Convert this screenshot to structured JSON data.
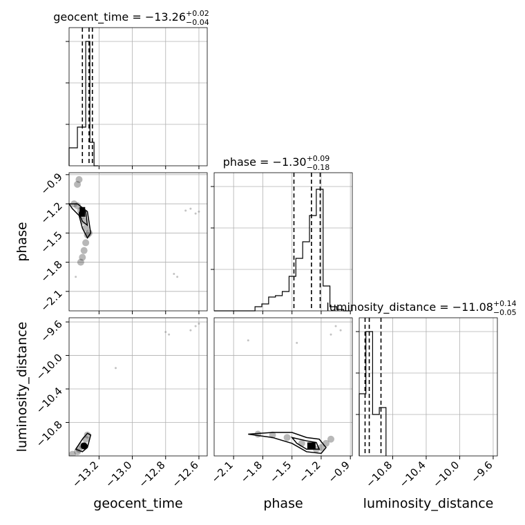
{
  "chart_data": {
    "type": "scatter",
    "kind": "corner-plot",
    "parameters": [
      "geocent_time",
      "phase",
      "luminosity_distance"
    ],
    "ranges": {
      "geocent_time": [
        -13.38,
        -12.55
      ],
      "phase": [
        -2.3,
        -0.88
      ],
      "luminosity_distance": [
        -11.2,
        -9.55
      ]
    },
    "ticks": {
      "geocent_time": [
        "−13.2",
        "−13.0",
        "−12.8",
        "−12.6"
      ],
      "phase": [
        "−2.1",
        "−1.8",
        "−1.5",
        "−1.2",
        "−0.9"
      ],
      "luminosity_distance": [
        "−10.8",
        "−10.4",
        "−10.0",
        "−9.6"
      ]
    },
    "tick_values": {
      "geocent_time": [
        -13.2,
        -13.0,
        -12.8,
        -12.6
      ],
      "phase": [
        -2.1,
        -1.8,
        -1.5,
        -1.2,
        -0.9
      ],
      "luminosity_distance": [
        -10.8,
        -10.4,
        -10.0,
        -9.6
      ]
    },
    "titles": {
      "geocent_time": {
        "prefix": "geocent_time = −13.26",
        "sup": "+0.02",
        "sub": "−0.04"
      },
      "phase": {
        "prefix": "phase = −1.30",
        "sup": "+0.09",
        "sub": "−0.18"
      },
      "luminosity_distance": {
        "prefix": "luminosity_distance = −11.08",
        "sup": "+0.14",
        "sub": "−0.05"
      }
    },
    "quantiles": {
      "geocent_time": [
        -13.3,
        -13.26,
        -13.24
      ],
      "phase": [
        -1.48,
        -1.3,
        -1.21
      ],
      "luminosity_distance": [
        -11.13,
        -11.08,
        -10.94
      ]
    },
    "histograms": {
      "geocent_time": {
        "edges": [
          -13.38,
          -13.355,
          -13.33,
          -13.305,
          -13.28,
          -13.255,
          -13.23,
          -13.205
        ],
        "counts": [
          0.13,
          0.13,
          0.28,
          0.28,
          0.9,
          0.17,
          0.0
        ]
      },
      "phase": {
        "edges": [
          -2.3,
          -2.23,
          -2.16,
          -2.09,
          -2.02,
          -1.95,
          -1.88,
          -1.81,
          -1.74,
          -1.67,
          -1.6,
          -1.53,
          -1.46,
          -1.39,
          -1.32,
          -1.25,
          -1.18,
          -1.11,
          -1.04,
          -0.97,
          -0.9
        ],
        "counts": [
          0.0,
          0.0,
          0.0,
          0.0,
          0.0,
          0.0,
          0.03,
          0.05,
          0.1,
          0.11,
          0.14,
          0.25,
          0.38,
          0.5,
          0.69,
          0.88,
          0.18,
          0.03,
          0.01,
          0.0
        ]
      },
      "luminosity_distance": {
        "edges": [
          -11.2,
          -11.12,
          -11.04,
          -10.96,
          -10.88
        ],
        "counts": [
          0.45,
          0.9,
          0.3,
          0.35
        ]
      }
    },
    "density_2d": {
      "phase_vs_geocent_time": {
        "main_points": [
          [
            -13.35,
            -1.2
          ],
          [
            -13.33,
            -1.22
          ],
          [
            -13.31,
            -1.27
          ],
          [
            -13.3,
            -1.32
          ],
          [
            -13.29,
            -1.38
          ],
          [
            -13.28,
            -1.45
          ],
          [
            -13.27,
            -1.52
          ],
          [
            -13.28,
            -1.6
          ],
          [
            -13.29,
            -1.68
          ],
          [
            -13.3,
            -1.75
          ],
          [
            -13.31,
            -1.8
          ],
          [
            -13.26,
            -1.5
          ],
          [
            -13.33,
            -1.0
          ],
          [
            -13.32,
            -0.95
          ]
        ],
        "stray_points": [
          [
            -12.65,
            -1.25
          ],
          [
            -12.62,
            -1.3
          ],
          [
            -12.6,
            -1.28
          ],
          [
            -12.68,
            -1.27
          ],
          [
            -12.75,
            -1.92
          ],
          [
            -12.73,
            -1.95
          ],
          [
            -13.34,
            -1.95
          ]
        ]
      },
      "luminosity_distance_vs_geocent_time": {
        "main_points": [
          [
            -13.3,
            -11.08
          ],
          [
            -13.32,
            -11.12
          ],
          [
            -13.28,
            -11.0
          ],
          [
            -13.27,
            -10.95
          ],
          [
            -13.33,
            -11.15
          ],
          [
            -13.36,
            -11.18
          ]
        ],
        "stray_points": [
          [
            -12.65,
            -9.7
          ],
          [
            -12.6,
            -9.62
          ],
          [
            -12.8,
            -9.72
          ],
          [
            -12.78,
            -9.75
          ],
          [
            -13.1,
            -10.15
          ],
          [
            -12.62,
            -9.65
          ]
        ]
      },
      "luminosity_distance_vs_phase": {
        "main_points": [
          [
            -1.3,
            -11.08
          ],
          [
            -1.4,
            -11.05
          ],
          [
            -1.55,
            -10.98
          ],
          [
            -1.7,
            -10.95
          ],
          [
            -1.85,
            -10.94
          ],
          [
            -1.25,
            -11.12
          ],
          [
            -1.2,
            -11.1
          ],
          [
            -1.15,
            -11.05
          ],
          [
            -1.1,
            -11.0
          ]
        ],
        "stray_points": [
          [
            -1.95,
            -9.82
          ],
          [
            -1.05,
            -9.65
          ],
          [
            -1.0,
            -9.7
          ],
          [
            -1.1,
            -9.75
          ],
          [
            -1.45,
            -9.85
          ]
        ]
      }
    },
    "colors": {
      "ink": "#000000",
      "grid": "#b0b0b0",
      "scatter": "#333333"
    }
  }
}
